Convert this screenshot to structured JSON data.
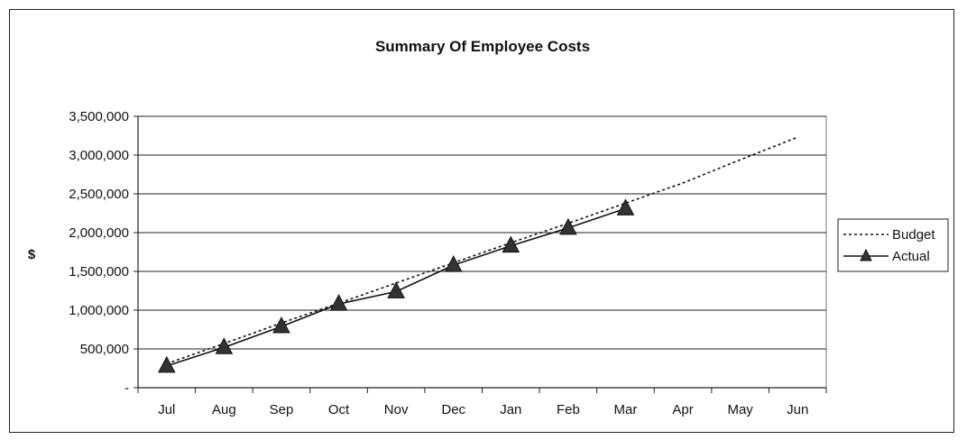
{
  "chart_data": {
    "type": "line",
    "title": "Summary Of Employee Costs",
    "xlabel": "",
    "ylabel": "$",
    "categories": [
      "Jul",
      "Aug",
      "Sep",
      "Oct",
      "Nov",
      "Dec",
      "Jan",
      "Feb",
      "Mar",
      "Apr",
      "May",
      "Jun"
    ],
    "ylim": [
      0,
      3500000
    ],
    "yticks": [
      0,
      500000,
      1000000,
      1500000,
      2000000,
      2500000,
      3000000,
      3500000
    ],
    "ytick_labels": [
      "-",
      "500,000",
      "1,000,000",
      "1,500,000",
      "2,000,000",
      "2,500,000",
      "3,000,000",
      "3,500,000"
    ],
    "grid": "horizontal",
    "legend_position": "right",
    "series": [
      {
        "name": "Budget",
        "style": "dotted",
        "marker": "none",
        "color": "#111111",
        "values": [
          310000,
          570000,
          835000,
          1090000,
          1350000,
          1610000,
          1870000,
          2120000,
          2380000,
          2640000,
          2940000,
          3230000
        ]
      },
      {
        "name": "Actual",
        "style": "solid",
        "marker": "triangle",
        "color": "#111111",
        "values": [
          280000,
          520000,
          790000,
          1080000,
          1240000,
          1580000,
          1830000,
          2060000,
          2310000,
          null,
          null,
          null
        ]
      }
    ]
  }
}
